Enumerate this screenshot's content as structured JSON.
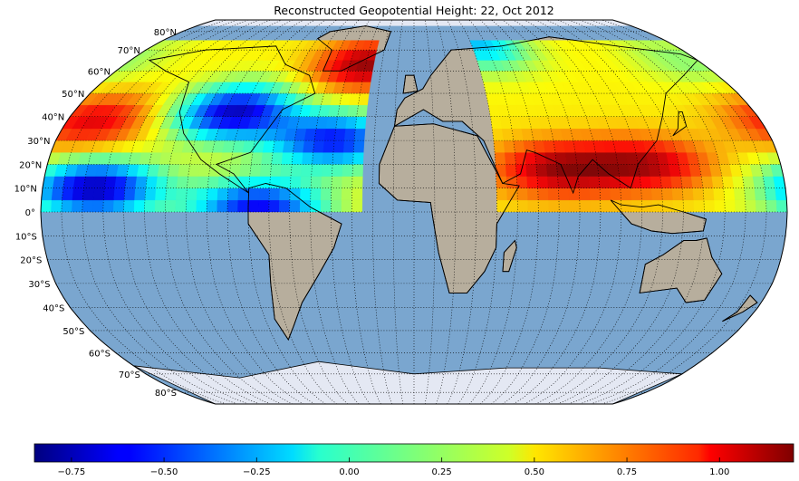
{
  "title": "Reconstructed Geopotential Height: 22, Oct 2012",
  "projection": "robinson",
  "lat_labels": [
    {
      "label": "80°N",
      "lat": 80
    },
    {
      "label": "70°N",
      "lat": 70
    },
    {
      "label": "60°N",
      "lat": 60
    },
    {
      "label": "50°N",
      "lat": 50
    },
    {
      "label": "40°N",
      "lat": 40
    },
    {
      "label": "30°N",
      "lat": 30
    },
    {
      "label": "20°N",
      "lat": 20
    },
    {
      "label": "10°N",
      "lat": 10
    },
    {
      "label": "0°",
      "lat": 0
    },
    {
      "label": "10°S",
      "lat": -10
    },
    {
      "label": "20°S",
      "lat": -20
    },
    {
      "label": "30°S",
      "lat": -30
    },
    {
      "label": "40°S",
      "lat": -40
    },
    {
      "label": "50°S",
      "lat": -50
    },
    {
      "label": "60°S",
      "lat": -60
    },
    {
      "label": "70°S",
      "lat": -70
    },
    {
      "label": "80°S",
      "lat": -80
    }
  ],
  "colorbar": {
    "colormap": "jet",
    "range": [
      -0.85,
      1.2
    ],
    "ticks": [
      {
        "label": "−0.75",
        "value": -0.75
      },
      {
        "label": "−0.50",
        "value": -0.5
      },
      {
        "label": "−0.25",
        "value": -0.25
      },
      {
        "label": "0.00",
        "value": 0
      },
      {
        "label": "0.25",
        "value": 0.25
      },
      {
        "label": "0.50",
        "value": 0.5
      },
      {
        "label": "0.75",
        "value": 0.75
      },
      {
        "label": "1.00",
        "value": 1.0
      }
    ]
  },
  "field_extent": {
    "lat_min": 0,
    "lat_max": 75
  },
  "field_anomalies": [
    {
      "lon": -30,
      "lat": 63,
      "value": 1.15
    },
    {
      "lon": -165,
      "lat": 38,
      "value": 1.0
    },
    {
      "lon": -155,
      "lat": 10,
      "value": -0.75
    },
    {
      "lon": -95,
      "lat": 42,
      "value": -0.7
    },
    {
      "lon": -40,
      "lat": 30,
      "value": -0.55
    },
    {
      "lon": -75,
      "lat": 2,
      "value": -0.6
    },
    {
      "lon": 70,
      "lat": 18,
      "value": 1.1
    },
    {
      "lon": 115,
      "lat": 20,
      "value": 1.05
    },
    {
      "lon": 170,
      "lat": 65,
      "value": 0.2
    },
    {
      "lon": 45,
      "lat": 72,
      "value": -0.2
    }
  ],
  "colors": {
    "ocean": "#7aa6cf",
    "land": "#b7ae9d",
    "coast": "#000000",
    "ice": "#e4e8f3"
  }
}
